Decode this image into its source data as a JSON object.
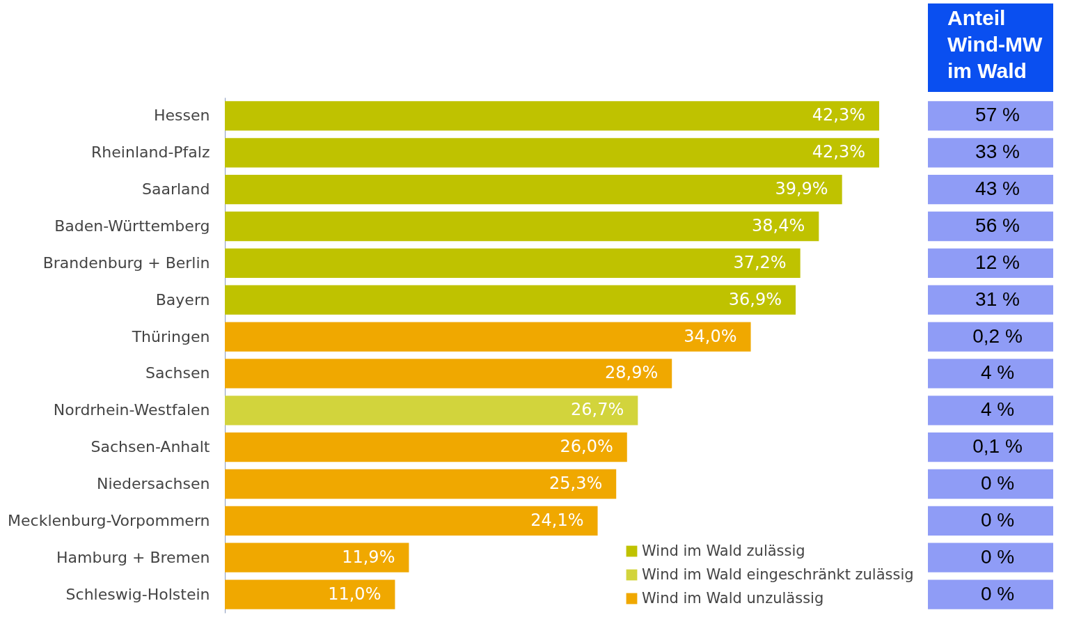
{
  "chart_data": [
    {
      "type": "bar",
      "orientation": "horizontal",
      "legend": "bottom right",
      "categories": [
        "Hessen",
        "Rheinland-Pfalz",
        "Saarland",
        "Baden-Württemberg",
        "Brandenburg + Berlin",
        "Bayern",
        "Thüringen",
        "Sachsen",
        "Nordrhein-Westfalen",
        "Sachsen-Anhalt",
        "Niedersachsen",
        "Mecklenburg-Vorpommern",
        "Hamburg + Bremen",
        "Schleswig-Holstein"
      ],
      "series": [
        {
          "name": "Wind im Wald zulässig",
          "color": "#bfc200",
          "values": [
            42.3,
            42.3,
            39.9,
            38.4,
            37.2,
            36.9,
            null,
            null,
            null,
            null,
            null,
            null,
            null,
            null
          ],
          "value_labels": [
            "42,3%",
            "42,3%",
            "39,9%",
            "38,4%",
            "37,2%",
            "36,9%",
            null,
            null,
            null,
            null,
            null,
            null,
            null,
            null
          ]
        },
        {
          "name": "Wind im Wald eingeschränkt zulässig",
          "color": "#d2d43c",
          "values": [
            null,
            null,
            null,
            null,
            null,
            null,
            null,
            null,
            26.7,
            null,
            null,
            null,
            null,
            null
          ],
          "value_labels": [
            null,
            null,
            null,
            null,
            null,
            null,
            null,
            null,
            "26,7%",
            null,
            null,
            null,
            null,
            null
          ]
        },
        {
          "name": "Wind im Wald unzulässig",
          "color": "#f0a800",
          "values": [
            null,
            null,
            null,
            null,
            null,
            null,
            34.0,
            28.9,
            null,
            26.0,
            25.3,
            24.1,
            11.9,
            11.0
          ],
          "value_labels": [
            null,
            null,
            null,
            null,
            null,
            null,
            "34,0%",
            "28,9%",
            null,
            "26,0%",
            "25,3%",
            "24,1%",
            "11,9%",
            "11,0%"
          ]
        }
      ]
    },
    {
      "type": "other",
      "title": "Anteil\nWind-MW\nim Wald",
      "annotations": [
        "57 %",
        "33 %",
        "43 %",
        "56 %",
        "12 %",
        "31 %",
        "0,2 %",
        "4 %",
        "4 %",
        "0,1 %",
        "0 %",
        "0 %",
        "0 %",
        "0 %"
      ]
    }
  ]
}
